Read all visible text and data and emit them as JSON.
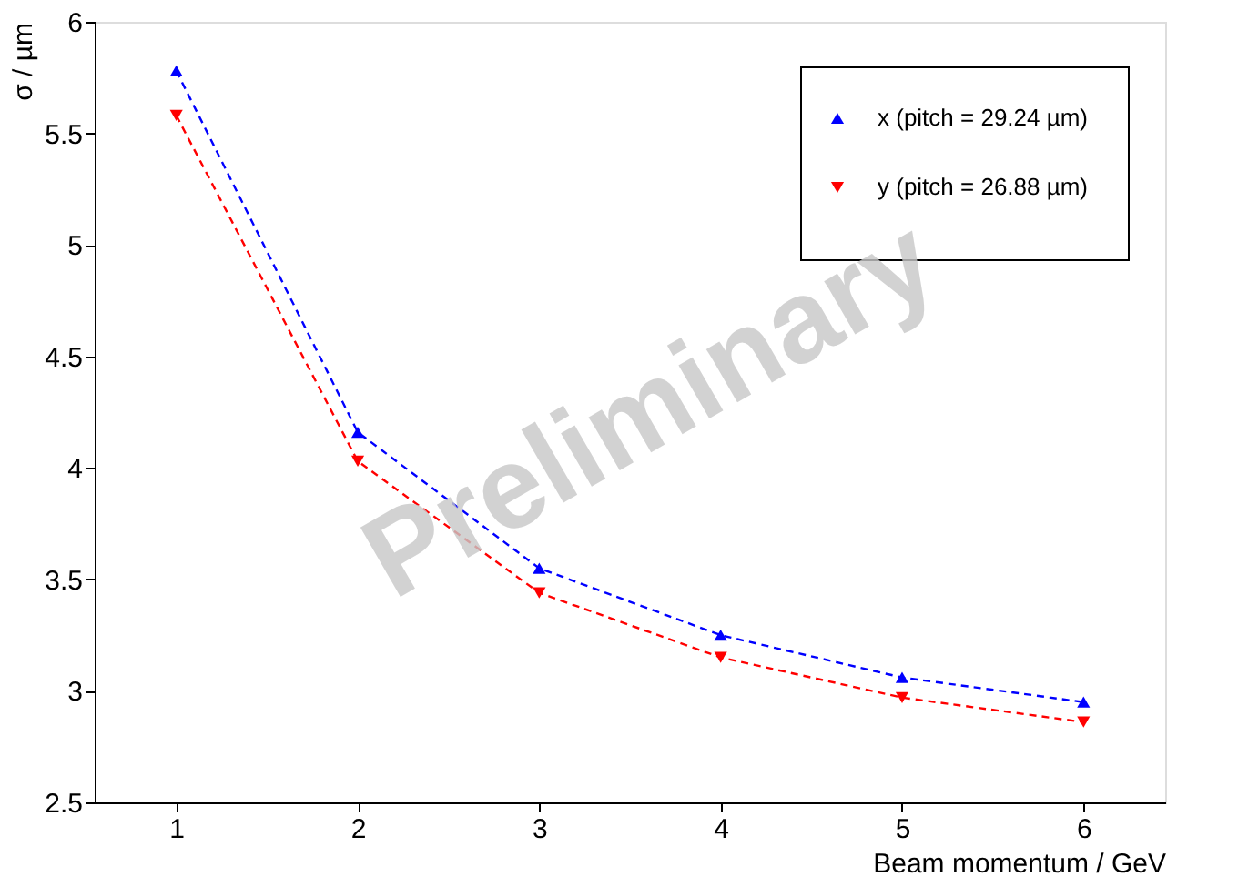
{
  "chart_data": {
    "type": "line",
    "xlabel": "Beam momentum / GeV",
    "ylabel": "σ / µm",
    "x": [
      1,
      2,
      3,
      4,
      5,
      6
    ],
    "series": [
      {
        "name": "x (pitch = 29.24 µm)",
        "color": "#0000ff",
        "marker": "triangle-up",
        "values": [
          5.78,
          4.16,
          3.55,
          3.25,
          3.06,
          2.95
        ]
      },
      {
        "name": "y (pitch = 26.88 µm)",
        "color": "#ff0000",
        "marker": "triangle-down",
        "values": [
          5.58,
          4.03,
          3.44,
          3.15,
          2.97,
          2.86
        ]
      }
    ],
    "xlim": [
      0.55,
      6.45
    ],
    "xticks": [
      1,
      2,
      3,
      4,
      5,
      6
    ],
    "ylim": [
      2.5,
      6
    ],
    "yticks": [
      2.5,
      3,
      3.5,
      4,
      4.5,
      5,
      5.5,
      6
    ],
    "line_style": "dashed",
    "grid": false,
    "legend": "top right",
    "annotations": [
      "Preliminary"
    ]
  }
}
